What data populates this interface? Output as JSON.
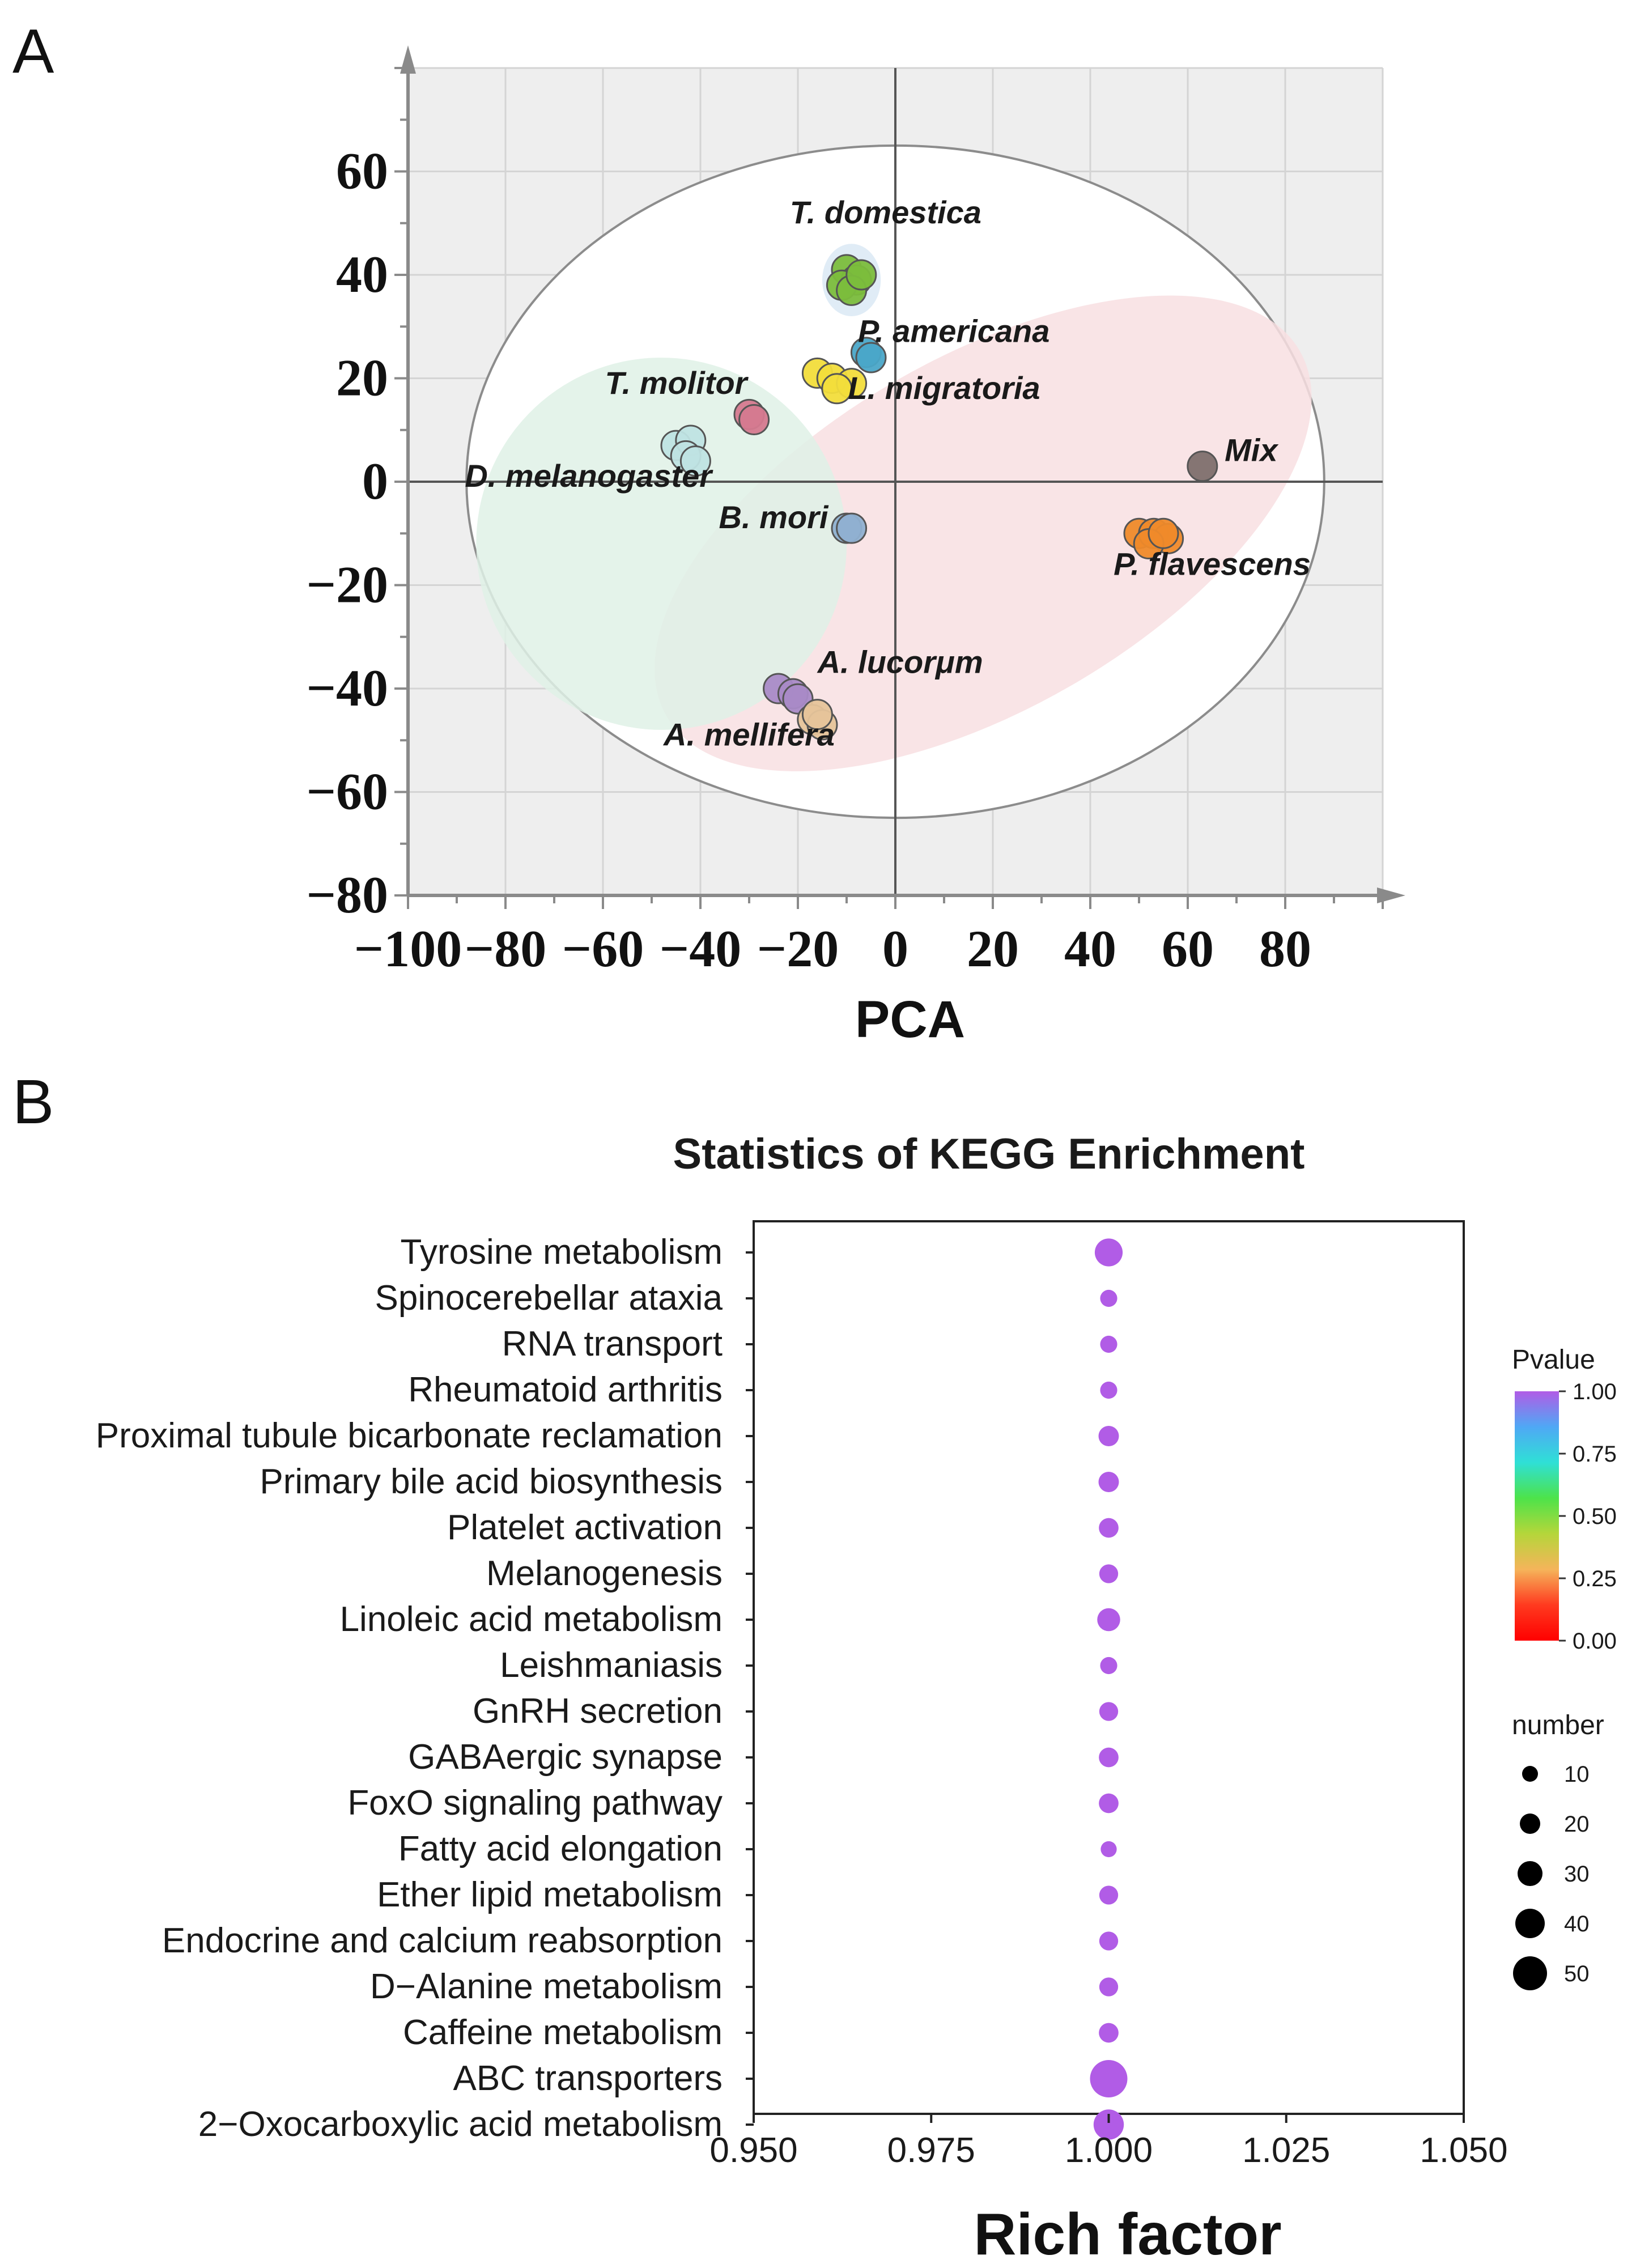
{
  "panel_labels": [
    "A",
    "B"
  ],
  "chart_data": [
    {
      "type": "scatter",
      "title": "",
      "xlabel": "PCA",
      "ylabel": "",
      "xlim": [
        -100,
        100
      ],
      "ylim": [
        -80,
        80
      ],
      "x_ticks": [
        -100,
        -80,
        -60,
        -40,
        -20,
        0,
        20,
        40,
        60,
        80
      ],
      "x_tick_labels": [
        "−100",
        "−80",
        "−60",
        "−40",
        "−20",
        "0",
        "20",
        "40",
        "60",
        "80"
      ],
      "y_ticks": [
        60,
        40,
        20,
        0,
        -20,
        -40,
        -60,
        -80
      ],
      "y_tick_labels": [
        "60",
        "40",
        "20",
        "0",
        "−20",
        "−40",
        "−60",
        "−80"
      ],
      "grid": true,
      "confidence_ellipse": {
        "cx": 0,
        "cy": 0,
        "rx": 88,
        "ry": 65
      },
      "group_ellipses": [
        {
          "name": "group-1",
          "color": "#f8dfe2",
          "cx": 18,
          "cy": -10,
          "rx": 75,
          "ry": 34,
          "angle": 30
        },
        {
          "name": "group-2",
          "color": "#dff1e6",
          "cx": -48,
          "cy": -12,
          "rx": 38,
          "ry": 36,
          "angle": 12
        },
        {
          "name": "group-3",
          "color": "#dbe9f5",
          "cx": -9,
          "cy": 39,
          "rx": 6,
          "ry": 7,
          "angle": 0
        }
      ],
      "series": [
        {
          "name": "T. domestica",
          "color": "#7bbd3c",
          "points": [
            [
              -10,
              41
            ],
            [
              -8,
              39
            ],
            [
              -11,
              38
            ],
            [
              -9,
              37
            ],
            [
              -7,
              40
            ]
          ],
          "label_at": [
            -2,
            50
          ]
        },
        {
          "name": "P. americana",
          "color": "#4aa7c8",
          "points": [
            [
              -6,
              25
            ],
            [
              -5,
              24
            ]
          ],
          "label_at": [
            12,
            27
          ]
        },
        {
          "name": "L. migratoria",
          "color": "#f2dd3b",
          "points": [
            [
              -16,
              21
            ],
            [
              -13,
              20
            ],
            [
              -9,
              19
            ],
            [
              -12,
              18
            ]
          ],
          "label_at": [
            10,
            16
          ]
        },
        {
          "name": "T. molitor",
          "color": "#d5798f",
          "points": [
            [
              -30,
              13
            ],
            [
              -29,
              12
            ]
          ],
          "label_at": [
            -45,
            17
          ]
        },
        {
          "name": "D. melanogaster",
          "color": "#bfe3e3",
          "points": [
            [
              -45,
              7
            ],
            [
              -42,
              8
            ],
            [
              -43,
              5
            ],
            [
              -41,
              4
            ]
          ],
          "label_at": [
            -63,
            -1
          ]
        },
        {
          "name": "Mix",
          "color": "#7e6f6d",
          "points": [
            [
              63,
              3
            ]
          ],
          "label_at": [
            73,
            4
          ]
        },
        {
          "name": "B. mori",
          "color": "#8fb0d1",
          "points": [
            [
              -10,
              -9
            ],
            [
              -9,
              -9
            ]
          ],
          "label_at": [
            -25,
            -9
          ]
        },
        {
          "name": "P. flavescens",
          "color": "#ef8a2a",
          "points": [
            [
              50,
              -10
            ],
            [
              53,
              -10
            ],
            [
              56,
              -11
            ],
            [
              52,
              -12
            ],
            [
              55,
              -10
            ]
          ],
          "label_at": [
            65,
            -18
          ]
        },
        {
          "name": "A. lucorμm",
          "color": "#a98ac7",
          "points": [
            [
              -24,
              -40
            ],
            [
              -21,
              -41
            ],
            [
              -20,
              -42
            ]
          ],
          "label_at": [
            1,
            -37
          ]
        },
        {
          "name": "A. mellifera",
          "color": "#e6c49a",
          "points": [
            [
              -17,
              -46
            ],
            [
              -15,
              -47
            ],
            [
              -16,
              -45
            ]
          ],
          "label_at": [
            -30,
            -51
          ]
        }
      ]
    },
    {
      "type": "scatter",
      "title": "Statistics of KEGG Enrichment",
      "xlabel": "Rich factor",
      "ylabel": "",
      "xlim": [
        0.95,
        1.05
      ],
      "x_ticks": [
        "0.950",
        "0.975",
        "1.000",
        "1.025",
        "1.050"
      ],
      "categories": [
        "Tyrosine metabolism",
        "Spinocerebellar ataxia",
        "RNA transport",
        "Rheumatoid arthritis",
        "Proximal tubule bicarbonate reclamation",
        "Primary bile acid biosynthesis",
        "Platelet activation",
        "Melanogenesis",
        "Linoleic acid metabolism",
        "Leishmaniasis",
        "GnRH secretion",
        "GABAergic synapse",
        "FoxO signaling pathway",
        "Fatty acid elongation",
        "Ether lipid metabolism",
        "Endocrine and calcium reabsorption",
        "D−Alanine metabolism",
        "Caffeine metabolism",
        "ABC transporters",
        "2−Oxocarboxylic acid metabolism"
      ],
      "rich_factor": [
        1,
        1,
        1,
        1,
        1,
        1,
        1,
        1,
        1,
        1,
        1,
        1,
        1,
        1,
        1,
        1,
        1,
        1,
        1,
        1
      ],
      "number": [
        22,
        4,
        4,
        4,
        8,
        8,
        7,
        6,
        12,
        4,
        6,
        7,
        7,
        3,
        6,
        6,
        6,
        7,
        50,
        28
      ],
      "pvalue": [
        1,
        1,
        1,
        1,
        1,
        1,
        1,
        1,
        1,
        1,
        1,
        1,
        1,
        1,
        1,
        1,
        1,
        1,
        1,
        1
      ],
      "point_color": "#b15ce6",
      "legend_pvalue": {
        "title": "Pvalue",
        "ticks": [
          "1.00",
          "0.75",
          "0.50",
          "0.25",
          "0.00"
        ],
        "gradient": [
          "#b15ce6",
          "#4fa8f5",
          "#2fe0d6",
          "#4de34a",
          "#b5d63a",
          "#f5b45a",
          "#ff3a1f",
          "#ff0000"
        ]
      },
      "legend_number": {
        "title": "number",
        "values": [
          10,
          20,
          30,
          40,
          50
        ],
        "labels": [
          "10",
          "20",
          "30",
          "40",
          "50"
        ]
      }
    }
  ]
}
